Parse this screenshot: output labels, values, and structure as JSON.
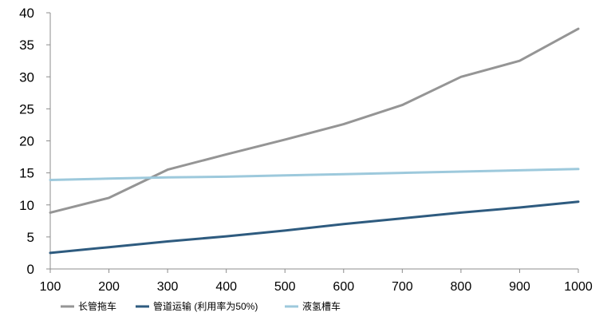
{
  "chart_data": {
    "type": "line",
    "title": "",
    "xlabel": "",
    "ylabel": "",
    "x": [
      100,
      200,
      300,
      400,
      500,
      600,
      700,
      800,
      900,
      1000
    ],
    "xlim": [
      100,
      1000
    ],
    "ylim": [
      0,
      40
    ],
    "yticks": [
      0,
      5,
      10,
      15,
      20,
      25,
      30,
      35,
      40
    ],
    "grid": false,
    "legend_position": "bottom",
    "series": [
      {
        "name": "长管拖车",
        "color": "#959595",
        "values": [
          8.8,
          11.1,
          15.5,
          17.9,
          20.2,
          22.6,
          25.6,
          30.0,
          32.5,
          37.5
        ]
      },
      {
        "name": "管道运输 (利用率为50%)",
        "color": "#2e5b7f",
        "values": [
          2.5,
          3.4,
          4.3,
          5.1,
          6.0,
          7.0,
          7.9,
          8.8,
          9.6,
          10.5
        ]
      },
      {
        "name": "液氢槽车",
        "color": "#9dc9dc",
        "values": [
          13.9,
          14.1,
          14.3,
          14.4,
          14.6,
          14.8,
          15.0,
          15.2,
          15.4,
          15.6
        ]
      }
    ]
  }
}
